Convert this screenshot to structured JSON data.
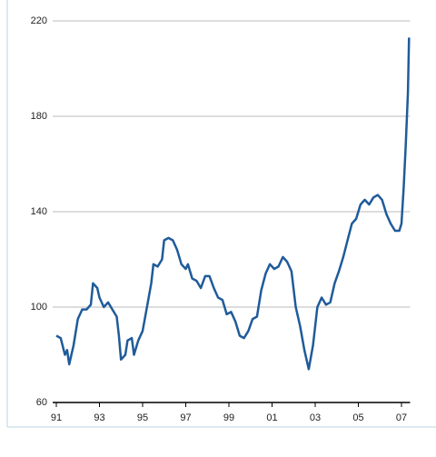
{
  "chart_data": {
    "type": "line",
    "x": [
      1991.0,
      1991.2,
      1991.4,
      1991.5,
      1991.6,
      1991.8,
      1992.0,
      1992.2,
      1992.4,
      1992.6,
      1992.7,
      1992.9,
      1993.0,
      1993.2,
      1993.4,
      1993.6,
      1993.8,
      1993.9,
      1994.0,
      1994.2,
      1994.3,
      1994.5,
      1994.6,
      1994.8,
      1995.0,
      1995.2,
      1995.4,
      1995.5,
      1995.7,
      1995.9,
      1996.0,
      1996.2,
      1996.4,
      1996.6,
      1996.8,
      1997.0,
      1997.1,
      1997.3,
      1997.5,
      1997.7,
      1997.9,
      1998.1,
      1998.3,
      1998.5,
      1998.7,
      1998.9,
      1999.1,
      1999.3,
      1999.5,
      1999.7,
      1999.9,
      2000.1,
      2000.3,
      2000.5,
      2000.7,
      2000.9,
      2001.1,
      2001.3,
      2001.5,
      2001.7,
      2001.9,
      2002.1,
      2002.3,
      2002.5,
      2002.7,
      2002.9,
      2003.1,
      2003.3,
      2003.5,
      2003.7,
      2003.9,
      2004.1,
      2004.3,
      2004.5,
      2004.7,
      2004.9,
      2005.1,
      2005.3,
      2005.5,
      2005.7,
      2005.9,
      2006.1,
      2006.3,
      2006.5,
      2006.7,
      2006.9,
      2007.0,
      2007.1,
      2007.2,
      2007.3,
      2007.35
    ],
    "series": [
      {
        "color": "#1f5b9a",
        "values": [
          88,
          87,
          80,
          82,
          76,
          84,
          95,
          99,
          99,
          101,
          110,
          108,
          104,
          100,
          102,
          99,
          96,
          88,
          78,
          80,
          86,
          87,
          80,
          86,
          90,
          100,
          110,
          118,
          117,
          120,
          128,
          129,
          128,
          124,
          118,
          116,
          118,
          112,
          111,
          108,
          113,
          113,
          108,
          104,
          103,
          97,
          98,
          94,
          88,
          87,
          90,
          95,
          96,
          107,
          114,
          118,
          116,
          117,
          121,
          119,
          115,
          100,
          92,
          82,
          74,
          84,
          100,
          104,
          101,
          102,
          110,
          115,
          121,
          128,
          135,
          137,
          143,
          145,
          143,
          146,
          147,
          145,
          139,
          135,
          132,
          132,
          135,
          150,
          168,
          190,
          213
        ]
      }
    ],
    "xlim": [
      1991,
      2007.4
    ],
    "xticks": [
      {
        "value": 1991,
        "label": "91"
      },
      {
        "value": 1993,
        "label": "93"
      },
      {
        "value": 1995,
        "label": "95"
      },
      {
        "value": 1997,
        "label": "97"
      },
      {
        "value": 1999,
        "label": "99"
      },
      {
        "value": 2001,
        "label": "01"
      },
      {
        "value": 2003,
        "label": "03"
      },
      {
        "value": 2005,
        "label": "05"
      },
      {
        "value": 2007,
        "label": "07"
      }
    ],
    "ylim": [
      60,
      220
    ],
    "yticks": [
      60,
      100,
      140,
      180,
      220
    ],
    "grid": true
  }
}
